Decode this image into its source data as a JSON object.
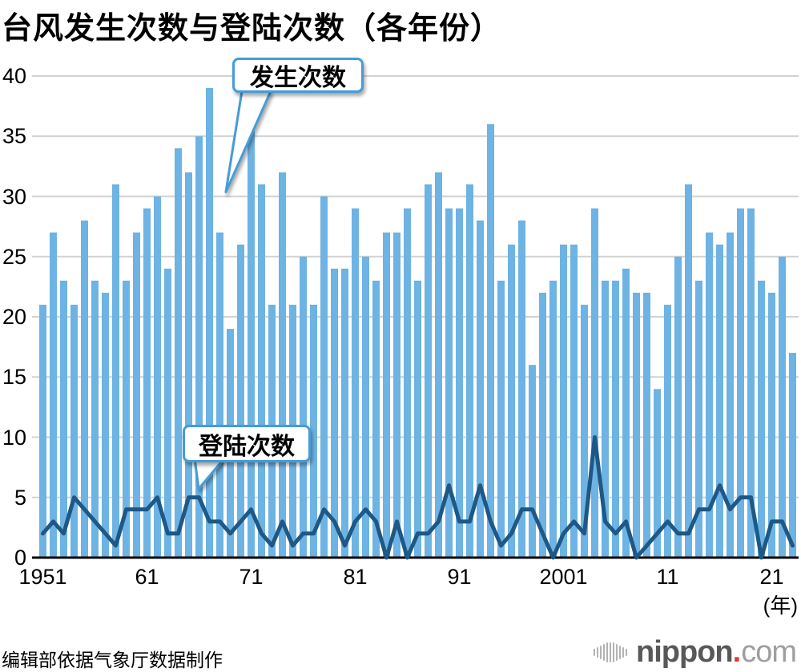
{
  "chart_data": {
    "type": "bar+line",
    "title": "台风发生次数与登陆次数（各年份）",
    "x_start_year": 1951,
    "x_end_year": 2023,
    "ylim": [
      0,
      40
    ],
    "ytick_step": 5,
    "grid": true,
    "xunit": "(年)",
    "xticks": [
      {
        "label": "1951",
        "year": 1951
      },
      {
        "label": "61",
        "year": 1961
      },
      {
        "label": "71",
        "year": 1971
      },
      {
        "label": "81",
        "year": 1981
      },
      {
        "label": "91",
        "year": 1991
      },
      {
        "label": "2001",
        "year": 2001
      },
      {
        "label": "11",
        "year": 2011
      },
      {
        "label": "21",
        "year": 2021
      }
    ],
    "series": [
      {
        "name": "发生次数",
        "type": "bar",
        "values": [
          21,
          27,
          23,
          21,
          28,
          23,
          22,
          31,
          23,
          27,
          29,
          30,
          24,
          34,
          32,
          35,
          39,
          27,
          19,
          26,
          36,
          31,
          21,
          32,
          21,
          25,
          21,
          30,
          24,
          24,
          29,
          25,
          23,
          27,
          27,
          29,
          23,
          31,
          32,
          29,
          29,
          31,
          28,
          36,
          23,
          26,
          28,
          16,
          22,
          23,
          26,
          26,
          21,
          29,
          23,
          23,
          24,
          22,
          22,
          14,
          21,
          25,
          31,
          23,
          27,
          26,
          27,
          29,
          29,
          23,
          22,
          25,
          17
        ]
      },
      {
        "name": "登陆次数",
        "type": "line",
        "values": [
          2,
          3,
          2,
          5,
          4,
          3,
          2,
          1,
          4,
          4,
          4,
          5,
          2,
          2,
          5,
          5,
          3,
          3,
          2,
          3,
          4,
          2,
          1,
          3,
          1,
          2,
          2,
          4,
          3,
          1,
          3,
          4,
          3,
          0,
          3,
          0,
          2,
          2,
          3,
          6,
          3,
          3,
          6,
          3,
          1,
          2,
          4,
          4,
          2,
          0,
          2,
          3,
          2,
          10,
          3,
          2,
          3,
          0,
          1,
          2,
          3,
          2,
          2,
          4,
          4,
          6,
          4,
          5,
          5,
          0,
          3,
          3,
          1
        ]
      }
    ]
  },
  "footer": {
    "source_note": "编辑部依据气象厅数据制作"
  },
  "logo": {
    "mark_icon": "soundwave-bars-icon",
    "brand_bold": "nippon",
    "dot": ".",
    "brand_light": "com"
  },
  "colors": {
    "bar_fill": "#6DB3E3",
    "line_stroke": "#1D5886",
    "callout_border": "#459CD8",
    "gridline": "#D2D2D2",
    "baseline": "#000000",
    "title_text": "#000000",
    "logo_dark": "#595757",
    "logo_light": "#9E9EA0",
    "logo_red": "#E5382C",
    "logo_mark_gray": "#B2B2B4"
  }
}
